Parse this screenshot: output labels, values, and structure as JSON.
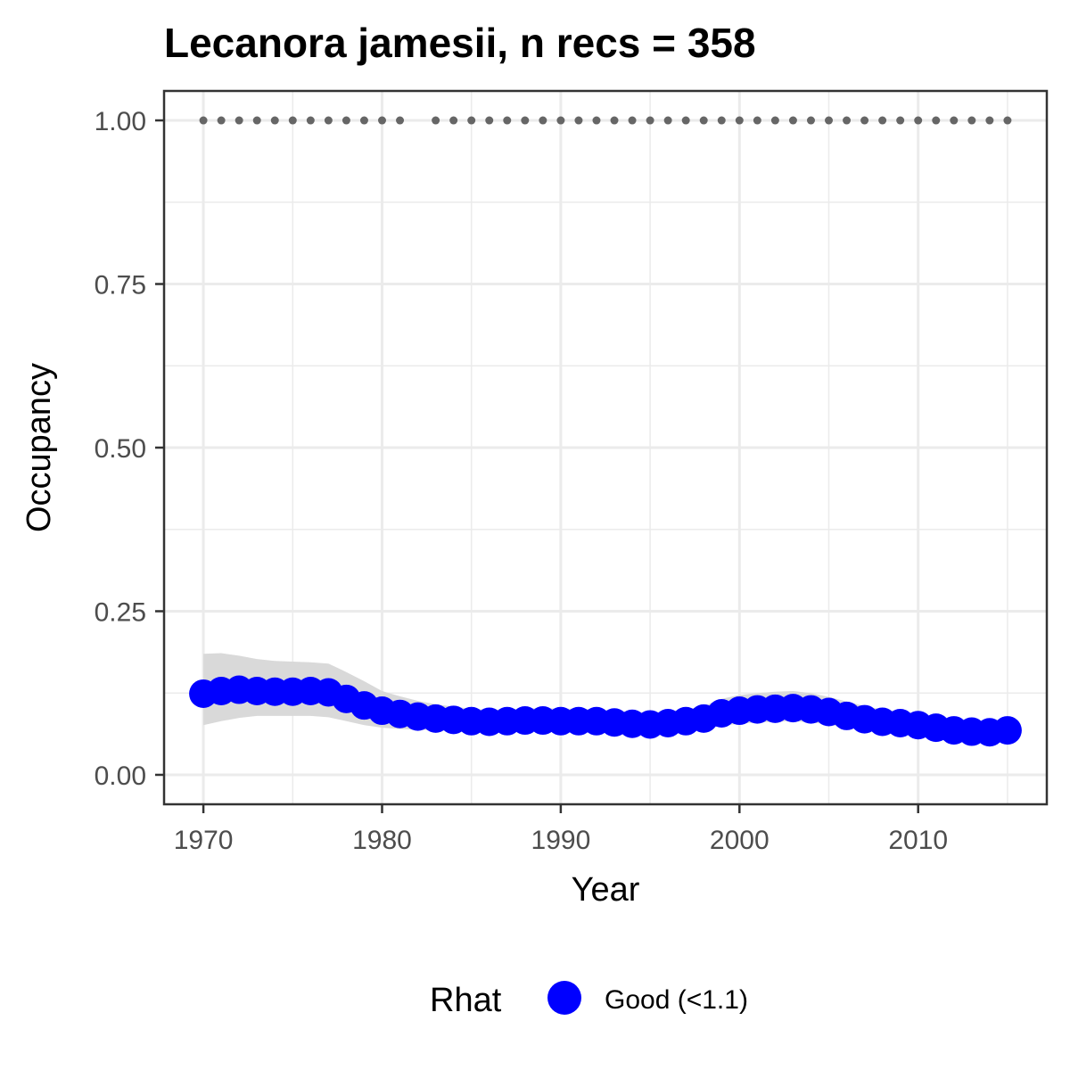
{
  "chart_data": {
    "type": "line",
    "title": "Lecanora jamesii, n recs = 358",
    "xlabel": "Year",
    "ylabel": "Occupancy",
    "xlim": [
      1967.8,
      2017.2
    ],
    "ylim": [
      -0.045,
      1.045
    ],
    "x_ticks": [
      1970,
      1980,
      1990,
      2000,
      2010
    ],
    "x_tick_labels": [
      "1970",
      "1980",
      "1990",
      "2000",
      "2010"
    ],
    "y_ticks": [
      0,
      0.25,
      0.5,
      0.75,
      1.0
    ],
    "y_tick_labels": [
      "0.00",
      "0.25",
      "0.50",
      "0.75",
      "1.00"
    ],
    "grid": true,
    "legend_position": "bottom",
    "colors": {
      "estimate": "#0000ff",
      "ribbon": "#d9d9d9",
      "record_years": "#666666",
      "grid": "#ebebeb",
      "panel_border": "#333333"
    },
    "x": [
      1970,
      1971,
      1972,
      1973,
      1974,
      1975,
      1976,
      1977,
      1978,
      1979,
      1980,
      1981,
      1982,
      1983,
      1984,
      1985,
      1986,
      1987,
      1988,
      1989,
      1990,
      1991,
      1992,
      1993,
      1994,
      1995,
      1996,
      1997,
      1998,
      1999,
      2000,
      2001,
      2002,
      2003,
      2004,
      2005,
      2006,
      2007,
      2008,
      2009,
      2010,
      2011,
      2012,
      2013,
      2014,
      2015
    ],
    "series": [
      {
        "name": "Good (<1.1)",
        "values": [
          0.124,
          0.128,
          0.13,
          0.128,
          0.127,
          0.127,
          0.128,
          0.126,
          0.116,
          0.106,
          0.098,
          0.093,
          0.089,
          0.086,
          0.084,
          0.082,
          0.081,
          0.082,
          0.083,
          0.083,
          0.082,
          0.082,
          0.082,
          0.08,
          0.078,
          0.077,
          0.079,
          0.082,
          0.086,
          0.094,
          0.098,
          0.1,
          0.101,
          0.102,
          0.1,
          0.096,
          0.09,
          0.085,
          0.081,
          0.079,
          0.076,
          0.072,
          0.068,
          0.066,
          0.065,
          0.068
        ]
      }
    ],
    "ribbon_lower": [
      0.076,
      0.082,
      0.087,
      0.09,
      0.09,
      0.09,
      0.09,
      0.088,
      0.082,
      0.076,
      0.072,
      0.07,
      0.069,
      0.068,
      0.067,
      0.066,
      0.066,
      0.066,
      0.067,
      0.067,
      0.066,
      0.066,
      0.066,
      0.064,
      0.063,
      0.062,
      0.063,
      0.066,
      0.069,
      0.075,
      0.078,
      0.08,
      0.081,
      0.082,
      0.08,
      0.077,
      0.072,
      0.068,
      0.065,
      0.063,
      0.061,
      0.057,
      0.054,
      0.052,
      0.052,
      0.054
    ],
    "ribbon_upper": [
      0.185,
      0.186,
      0.182,
      0.177,
      0.174,
      0.173,
      0.172,
      0.17,
      0.157,
      0.143,
      0.128,
      0.12,
      0.113,
      0.108,
      0.104,
      0.101,
      0.099,
      0.1,
      0.101,
      0.102,
      0.101,
      0.101,
      0.1,
      0.098,
      0.096,
      0.095,
      0.097,
      0.1,
      0.105,
      0.116,
      0.122,
      0.125,
      0.127,
      0.128,
      0.125,
      0.119,
      0.112,
      0.105,
      0.1,
      0.097,
      0.093,
      0.088,
      0.084,
      0.081,
      0.08,
      0.084
    ],
    "record_years": [
      1970,
      1971,
      1972,
      1973,
      1974,
      1975,
      1976,
      1977,
      1978,
      1979,
      1980,
      1981,
      1983,
      1984,
      1985,
      1986,
      1987,
      1988,
      1989,
      1990,
      1991,
      1992,
      1993,
      1994,
      1995,
      1996,
      1997,
      1998,
      1999,
      2000,
      2001,
      2002,
      2003,
      2004,
      2005,
      2006,
      2007,
      2008,
      2009,
      2010,
      2011,
      2012,
      2013,
      2014,
      2015
    ],
    "record_level": 1.0,
    "legend": {
      "title": "Rhat",
      "entries": [
        "Good (<1.1)"
      ]
    }
  }
}
